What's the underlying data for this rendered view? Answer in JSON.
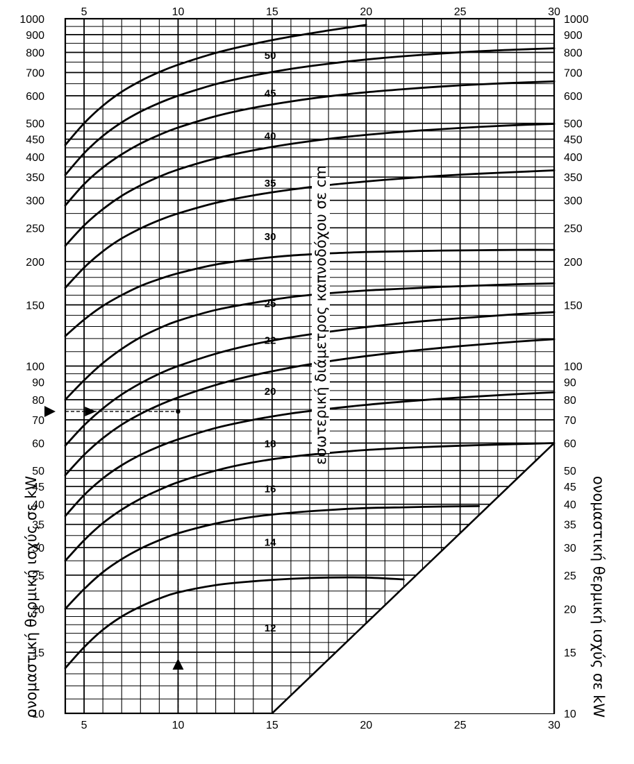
{
  "chart_data": {
    "type": "line",
    "x_ticks": [
      5,
      10,
      15,
      20,
      25,
      30
    ],
    "xlim": [
      4,
      30
    ],
    "y_ticks": [
      10,
      15,
      20,
      25,
      30,
      35,
      40,
      45,
      50,
      60,
      70,
      80,
      90,
      100,
      150,
      200,
      250,
      300,
      350,
      400,
      450,
      500,
      600,
      700,
      800,
      900,
      1000
    ],
    "ylim": [
      10,
      1000
    ],
    "y_scale": "log",
    "grid": true,
    "ylabel": "ονομαστική θερμική ισχύς σε kW",
    "curve_title": "εσωτερική διάμετρος καπνοδόχου σε cm",
    "series": [
      {
        "name": "12",
        "x": [
          4,
          5,
          6,
          7,
          8,
          9,
          10,
          12,
          14,
          16,
          18,
          20,
          22
        ],
        "y": [
          13.5,
          15.5,
          17.4,
          19.0,
          20.3,
          21.4,
          22.3,
          23.4,
          24.0,
          24.4,
          24.6,
          24.6,
          24.3
        ]
      },
      {
        "name": "14",
        "x": [
          4,
          5,
          6,
          7,
          8,
          9,
          10,
          12,
          14,
          16,
          18,
          20,
          22,
          24,
          26
        ],
        "y": [
          20,
          22.8,
          25.5,
          27.8,
          29.8,
          31.5,
          33.0,
          35.2,
          36.8,
          37.8,
          38.5,
          39.0,
          39.2,
          39.4,
          39.5
        ]
      },
      {
        "name": "16",
        "x": [
          4,
          5,
          6,
          7,
          8,
          9,
          10,
          12,
          14,
          16,
          18,
          20,
          22,
          24,
          26,
          28,
          30
        ],
        "y": [
          27.5,
          31.5,
          35.3,
          38.6,
          41.5,
          44.0,
          46.3,
          50.0,
          52.8,
          54.8,
          56.2,
          57.3,
          58.1,
          58.7,
          59.2,
          59.6,
          60
        ]
      },
      {
        "name": "18",
        "x": [
          4,
          5,
          6,
          7,
          8,
          9,
          10,
          12,
          14,
          16,
          18,
          20,
          22,
          24,
          26,
          28,
          30
        ],
        "y": [
          37,
          42.5,
          47.5,
          51.8,
          55.5,
          58.7,
          61.5,
          66.3,
          70.0,
          73.0,
          75.3,
          77.3,
          79.0,
          80.5,
          81.8,
          83.0,
          84.0
        ]
      },
      {
        "name": "20",
        "x": [
          4,
          5,
          6,
          7,
          8,
          9,
          10,
          12,
          14,
          16,
          18,
          20,
          22,
          24,
          26,
          28,
          30
        ],
        "y": [
          48.5,
          55.5,
          62,
          67.8,
          72.8,
          77.2,
          81.2,
          88.2,
          94.0,
          99.0,
          103.2,
          106.8,
          110.0,
          112.8,
          115.3,
          117.5,
          119.5
        ]
      },
      {
        "name": "22",
        "x": [
          4,
          5,
          6,
          7,
          8,
          9,
          10,
          12,
          14,
          16,
          18,
          20,
          22,
          24,
          26,
          28,
          30
        ],
        "y": [
          59,
          67.5,
          75.5,
          82.8,
          89.2,
          95.0,
          100,
          108.5,
          115.5,
          121.0,
          125.5,
          129.5,
          133.0,
          136.0,
          138.5,
          141.0,
          143
        ]
      },
      {
        "name": "25",
        "x": [
          4,
          5,
          6,
          7,
          8,
          9,
          10,
          12,
          14,
          16,
          18,
          20,
          22,
          24,
          26,
          28,
          30
        ],
        "y": [
          80,
          91,
          102,
          112,
          121,
          128.5,
          135,
          145,
          152,
          158,
          162,
          165,
          167,
          169,
          170.5,
          172,
          173
        ]
      },
      {
        "name": "30",
        "x": [
          4,
          5,
          6,
          7,
          8,
          9,
          10,
          12,
          14,
          16,
          18,
          20,
          22,
          24,
          26,
          28,
          30
        ],
        "y": [
          122,
          136,
          149,
          160,
          170,
          178,
          185,
          196,
          203,
          208,
          211,
          213,
          214,
          215,
          215.5,
          216,
          216
        ]
      },
      {
        "name": "35",
        "x": [
          4,
          5,
          6,
          7,
          8,
          9,
          10,
          12,
          14,
          16,
          18,
          20,
          22,
          24,
          26,
          28,
          30
        ],
        "y": [
          168,
          192,
          214,
          233,
          249,
          263,
          275,
          295,
          310,
          322,
          332,
          340,
          347,
          353,
          358,
          362,
          366
        ]
      },
      {
        "name": "40",
        "x": [
          4,
          5,
          6,
          7,
          8,
          9,
          10,
          12,
          14,
          16,
          18,
          20,
          22,
          24,
          26,
          28,
          30
        ],
        "y": [
          222,
          254,
          283,
          309,
          331,
          351,
          368,
          396,
          418,
          436,
          451,
          463,
          473,
          481,
          488,
          494,
          498
        ]
      },
      {
        "name": "45",
        "x": [
          4,
          5,
          6,
          7,
          8,
          9,
          10,
          12,
          14,
          16,
          18,
          20,
          22,
          24,
          26,
          28,
          30
        ],
        "y": [
          290,
          334,
          373,
          407,
          437,
          463,
          486,
          524,
          554,
          578,
          598,
          614,
          627,
          638,
          647,
          654,
          660
        ]
      },
      {
        "name": "50",
        "x": [
          4,
          5,
          6,
          7,
          8,
          9,
          10,
          12,
          14,
          16,
          18,
          20,
          22,
          24,
          26,
          28,
          30
        ],
        "y": [
          355,
          410,
          460,
          503,
          540,
          572,
          600,
          648,
          686,
          717,
          742,
          763,
          780,
          794,
          806,
          815,
          822
        ]
      },
      {
        "name": "",
        "x": [
          4,
          5,
          6,
          7,
          8,
          9,
          10,
          12,
          14,
          16,
          18,
          20
        ],
        "y": [
          433,
          500,
          562,
          616,
          662,
          702,
          737,
          797,
          846,
          888,
          925,
          960
        ]
      }
    ],
    "labels": [
      "50",
      "45",
      "40",
      "35",
      "30",
      "25",
      "22",
      "20",
      "18",
      "16",
      "14",
      "12"
    ],
    "example": {
      "x": 10,
      "y": 74
    },
    "excluded_region": "lower-right triangle, from (15, 10) to (30, 60)"
  }
}
